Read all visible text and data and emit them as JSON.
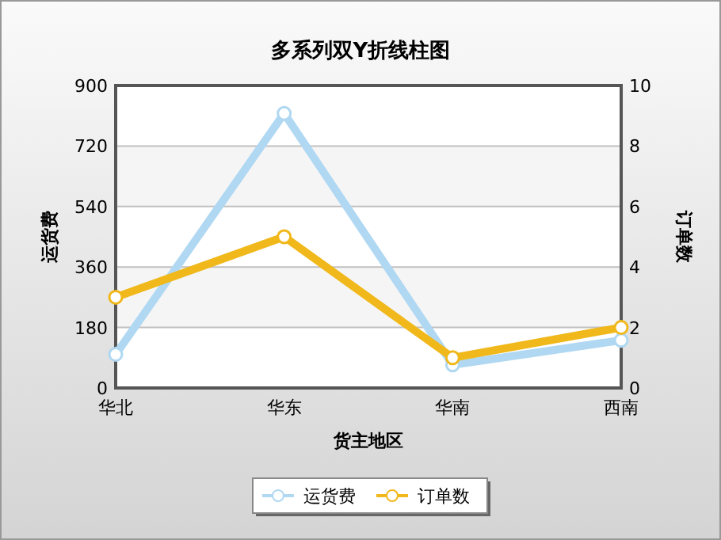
{
  "chart_data": {
    "type": "line",
    "title": "多系列双Y折线柱图",
    "xlabel": "货主地区",
    "ylabel": "运货费",
    "y2label": "订单数",
    "categories": [
      "华北",
      "华东",
      "华南",
      "西南"
    ],
    "series": [
      {
        "name": "运货费",
        "color": "#b0d8f2",
        "values": [
          100,
          817,
          69,
          142
        ]
      },
      {
        "name": "订单数",
        "color": "#f0b81a",
        "values": [
          3,
          5,
          1,
          2
        ],
        "axis": "y2"
      }
    ],
    "ylim": [
      0,
      900
    ],
    "yticks": [
      0,
      180,
      360,
      540,
      720,
      900
    ],
    "y2lim": [
      0,
      10
    ],
    "y2ticks": [
      0,
      2,
      4,
      6,
      8,
      10
    ],
    "grid": "y",
    "legend": "bottom",
    "marker": "circle",
    "line_style": "solid"
  }
}
